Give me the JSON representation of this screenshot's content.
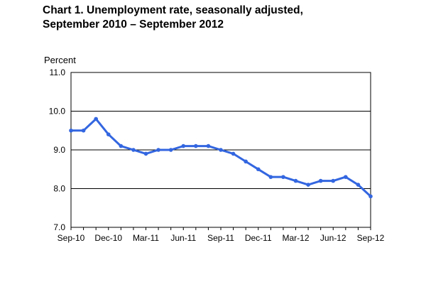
{
  "title_line1": "Chart 1. Unemployment rate, seasonally adjusted,",
  "title_line2": "September 2010 – September 2012",
  "chart_data": {
    "type": "line",
    "title": "Chart 1. Unemployment rate, seasonally adjusted, September 2010 – September 2012",
    "ylabel": "Percent",
    "xlabel": "",
    "ylim": [
      7.0,
      11.0
    ],
    "yticks": [
      "11.0",
      "10.0",
      "9.0",
      "8.0",
      "7.0"
    ],
    "xticks": [
      "Sep-10",
      "Dec-10",
      "Mar-11",
      "Jun-11",
      "Sep-11",
      "Dec-11",
      "Mar-12",
      "Jun-12",
      "Sep-12"
    ],
    "grid": true,
    "line_color": "#3366e0",
    "x": [
      "Sep-10",
      "Oct-10",
      "Nov-10",
      "Dec-10",
      "Jan-11",
      "Feb-11",
      "Mar-11",
      "Apr-11",
      "May-11",
      "Jun-11",
      "Jul-11",
      "Aug-11",
      "Sep-11",
      "Oct-11",
      "Nov-11",
      "Dec-11",
      "Jan-12",
      "Feb-12",
      "Mar-12",
      "Apr-12",
      "May-12",
      "Jun-12",
      "Jul-12",
      "Aug-12",
      "Sep-12"
    ],
    "series": [
      {
        "values": [
          9.5,
          9.5,
          9.8,
          9.4,
          9.1,
          9.0,
          8.9,
          9.0,
          9.0,
          9.1,
          9.1,
          9.1,
          9.0,
          8.9,
          8.7,
          8.5,
          8.3,
          8.3,
          8.2,
          8.1,
          8.2,
          8.2,
          8.3,
          8.1,
          7.8
        ]
      }
    ]
  }
}
